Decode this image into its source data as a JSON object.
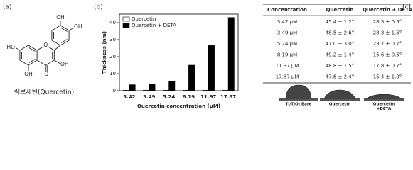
{
  "panels": [
    "(a)",
    "(b)",
    "(c)"
  ],
  "structure": {
    "labels": [
      "OH",
      "OH",
      "HO",
      "O",
      "OH",
      "OH",
      "O"
    ],
    "caption": "퀘르세틴(Quercetin)"
  },
  "chart_data": {
    "type": "bar",
    "x_label": "Quercetin concentration (μM)",
    "y_label": "Thickness (nm)",
    "categories": [
      "3.42",
      "3.49",
      "5.24",
      "8.19",
      "11.97",
      "17.87"
    ],
    "series": [
      {
        "name": "Quercetin",
        "color": "#ffffff",
        "values": [
          0.3,
          0.3,
          0.3,
          0.3,
          0.3,
          0.3
        ]
      },
      {
        "name": "Quercetin + DETA",
        "color": "#000000",
        "values": [
          3.5,
          3.6,
          5.5,
          15,
          26.5,
          43
        ]
      }
    ],
    "ylim": [
      0,
      45
    ],
    "yticks": [
      0,
      10,
      20,
      30,
      40
    ],
    "legend": "upper-left"
  },
  "table": {
    "header": [
      "Concentration",
      "Quercetin",
      "Quercetin + DETA"
    ],
    "rows": [
      [
        "3.42 μM",
        "45.4 ± 1.2°",
        "28.5 ± 0.5°"
      ],
      [
        "3.49 μM",
        "48.5 ± 2.6°",
        "28.3 ± 1.5°"
      ],
      [
        "5.24 μM",
        "47.0 ± 3.0°",
        "23.7 ± 0.7°"
      ],
      [
        "8.19 μM",
        "49.2 ± 1.4°",
        "15.6 ± 0.5°"
      ],
      [
        "11.97 μM",
        "48.8 ± 1.5°",
        "17.8 ± 0.7°"
      ],
      [
        "17.87 μM",
        "47.6 ± 2.4°",
        "15.4 ± 1.0°"
      ]
    ]
  },
  "droplets": [
    [
      "Ti/TiO₂ Bare"
    ],
    [
      "Quercetin"
    ],
    [
      "Quercetin",
      "+DETA"
    ]
  ]
}
